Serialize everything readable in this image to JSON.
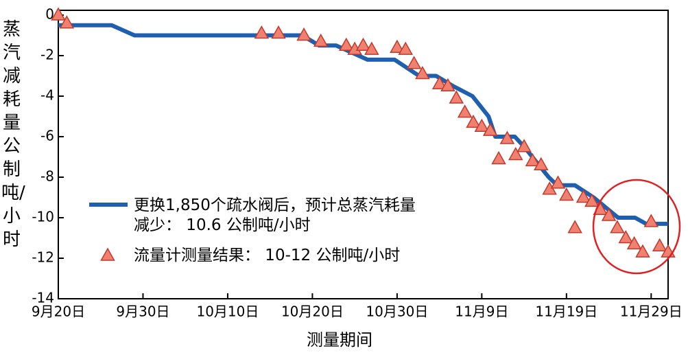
{
  "chart_data": {
    "type": "line",
    "xlabel": "测量期间",
    "ylabel": "蒸汽减耗量公制吨/小时",
    "annotation_shape": "circle",
    "xlim": [
      0,
      72
    ],
    "ylim": [
      -14,
      0
    ],
    "xticks": [
      {
        "value": 0,
        "label": "9月20日"
      },
      {
        "value": 10,
        "label": "9月30日"
      },
      {
        "value": 20,
        "label": "10月10日"
      },
      {
        "value": 30,
        "label": "10月20日"
      },
      {
        "value": 40,
        "label": "10月30日"
      },
      {
        "value": 50,
        "label": "11月9日"
      },
      {
        "value": 60,
        "label": "11月19日"
      },
      {
        "value": 70,
        "label": "11月29日"
      }
    ],
    "yticks": [
      0,
      -2,
      -4,
      -6,
      -8,
      -10,
      -12,
      -14
    ],
    "series": [
      {
        "name": "更换1,850个疏水阀后，预计总蒸汽耗量\n减少： 10.6 公制吨/小时",
        "type": "line",
        "color": "#1f5fb0",
        "x": [
          0,
          6.3,
          9,
          28.8,
          30.8,
          32.8,
          34.4,
          36.5,
          39.7,
          42.6,
          44.6,
          46.6,
          48.9,
          50.8,
          51.6,
          53.9,
          55,
          57.9,
          58.9,
          61,
          63.2,
          66.1,
          68.1,
          69.4,
          72
        ],
        "values": [
          -0.5,
          -0.5,
          -1,
          -1,
          -1.5,
          -1.5,
          -1.8,
          -2.2,
          -2.2,
          -3,
          -3,
          -3.5,
          -4,
          -5,
          -6,
          -6,
          -6.5,
          -8,
          -8.4,
          -8.4,
          -9,
          -10,
          -10,
          -10.3,
          -10.3
        ]
      },
      {
        "name": "流量计测量结果： 10-12 公制吨/小时",
        "type": "scatter",
        "color": "#f08070",
        "x": [
          0,
          1,
          24,
          26,
          29,
          31,
          34,
          35,
          36,
          37,
          40,
          41,
          42,
          43,
          45,
          46,
          47,
          48,
          49,
          50,
          51,
          52,
          53,
          54,
          55,
          56,
          57,
          58,
          59,
          60,
          61,
          62,
          63,
          64,
          65,
          66,
          67,
          68,
          69,
          70,
          71,
          72
        ],
        "values": [
          0,
          -0.4,
          -0.9,
          -0.9,
          -1,
          -1.3,
          -1.5,
          -1.7,
          -1.5,
          -1.7,
          -1.6,
          -1.7,
          -2.4,
          -2.9,
          -3.4,
          -3.5,
          -4.1,
          -4.8,
          -5.3,
          -5.5,
          -5.7,
          -7.1,
          -6.1,
          -6.9,
          -6.5,
          -7.2,
          -7.4,
          -8.6,
          -8.3,
          -8.9,
          -10.5,
          -9,
          -9.2,
          -9.6,
          -9.9,
          -10.5,
          -11,
          -11.3,
          -11.7,
          -10.2,
          -11.4,
          -11.7
        ]
      }
    ]
  }
}
